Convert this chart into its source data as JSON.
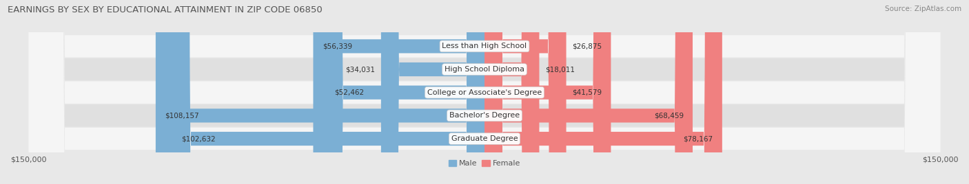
{
  "title": "EARNINGS BY SEX BY EDUCATIONAL ATTAINMENT IN ZIP CODE 06850",
  "source": "Source: ZipAtlas.com",
  "categories": [
    "Less than High School",
    "High School Diploma",
    "College or Associate's Degree",
    "Bachelor's Degree",
    "Graduate Degree"
  ],
  "male_values": [
    56339,
    34031,
    52462,
    108157,
    102632
  ],
  "female_values": [
    26875,
    18011,
    41579,
    68459,
    78167
  ],
  "male_color": "#7bafd4",
  "female_color": "#f08080",
  "male_label": "Male",
  "female_label": "Female",
  "max_value": 150000,
  "bar_height": 0.6,
  "background_color": "#e8e8e8",
  "row_colors": [
    "#f5f5f5",
    "#e0e0e0"
  ],
  "title_fontsize": 9.5,
  "label_fontsize": 8.0,
  "value_fontsize": 7.5,
  "tick_fontsize": 8,
  "source_fontsize": 7.5
}
